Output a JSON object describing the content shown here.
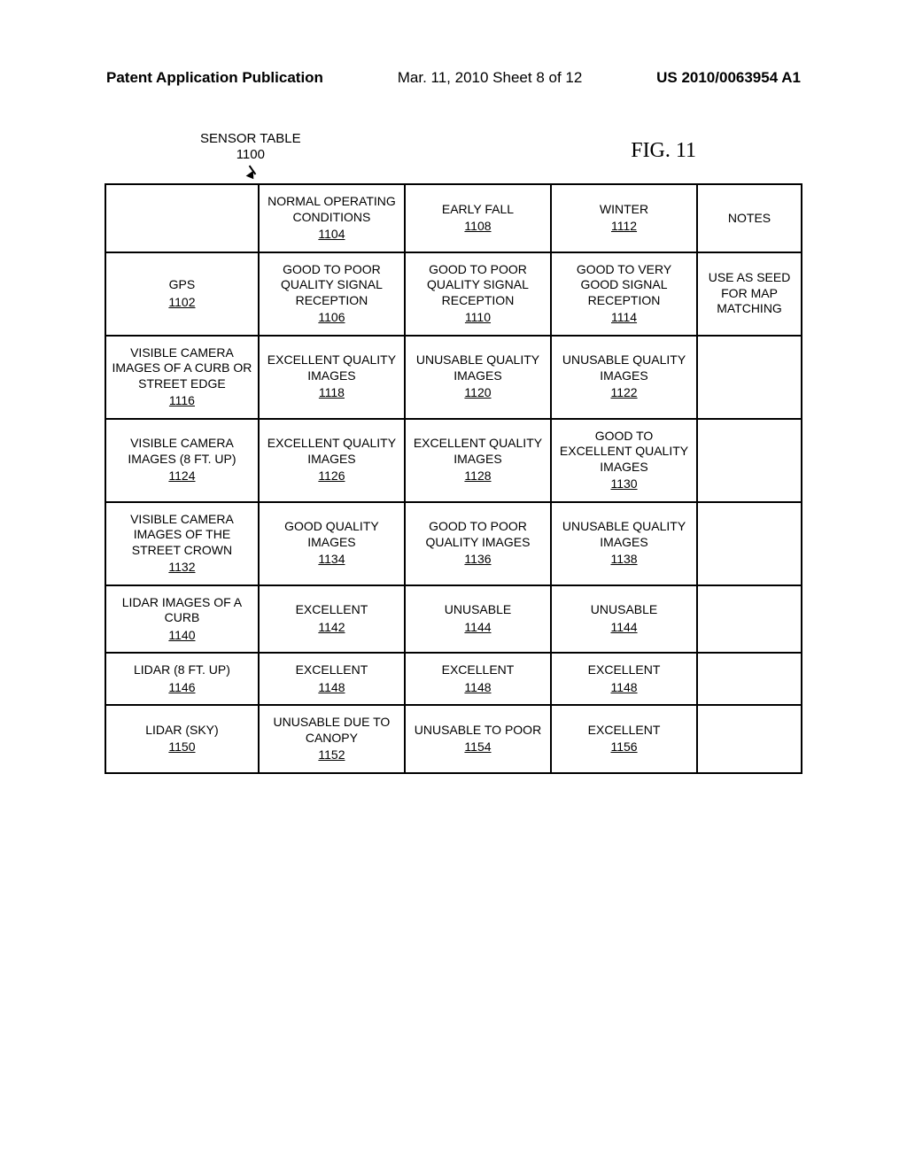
{
  "header": {
    "left": "Patent Application Publication",
    "center": "Mar. 11, 2010  Sheet 8 of 12",
    "right": "US 2010/0063954 A1"
  },
  "figure_label": "FIG. 11",
  "table_title": {
    "text": "SENSOR TABLE",
    "ref": "1100"
  },
  "columns": [
    {
      "text": "",
      "ref": ""
    },
    {
      "text": "NORMAL OPERATING CONDITIONS",
      "ref": "1104"
    },
    {
      "text": "EARLY FALL",
      "ref": "1108"
    },
    {
      "text": "WINTER",
      "ref": "1112"
    },
    {
      "text": "NOTES",
      "ref": ""
    }
  ],
  "rows": [
    {
      "label": {
        "text": "GPS",
        "ref": "1102"
      },
      "c1": {
        "text": "GOOD TO POOR QUALITY SIGNAL RECEPTION",
        "ref": "1106"
      },
      "c2": {
        "text": "GOOD TO POOR QUALITY SIGNAL RECEPTION",
        "ref": "1110"
      },
      "c3": {
        "text": "GOOD TO  VERY GOOD SIGNAL RECEPTION",
        "ref": "1114"
      },
      "notes": "USE AS SEED FOR MAP MATCHING"
    },
    {
      "label": {
        "text": "VISIBLE CAMERA IMAGES OF A CURB OR STREET EDGE",
        "ref": "1116"
      },
      "c1": {
        "text": "EXCELLENT QUALITY IMAGES",
        "ref": "1118"
      },
      "c2": {
        "text": "UNUSABLE QUALITY IMAGES",
        "ref": "1120"
      },
      "c3": {
        "text": "UNUSABLE QUALITY IMAGES",
        "ref": "1122"
      },
      "notes": ""
    },
    {
      "label": {
        "text": "VISIBLE CAMERA IMAGES (8 FT. UP)",
        "ref": "1124"
      },
      "c1": {
        "text": "EXCELLENT QUALITY IMAGES",
        "ref": "1126"
      },
      "c2": {
        "text": "EXCELLENT QUALITY IMAGES",
        "ref": "1128"
      },
      "c3": {
        "text": "GOOD TO EXCELLENT QUALITY IMAGES",
        "ref": "1130"
      },
      "notes": ""
    },
    {
      "label": {
        "text": "VISIBLE CAMERA IMAGES OF THE STREET CROWN",
        "ref": "1132"
      },
      "c1": {
        "text": "GOOD QUALITY IMAGES",
        "ref": "1134"
      },
      "c2": {
        "text": "GOOD TO POOR QUALITY IMAGES",
        "ref": "1136"
      },
      "c3": {
        "text": "UNUSABLE QUALITY IMAGES",
        "ref": "1138"
      },
      "notes": ""
    },
    {
      "label": {
        "text": "LIDAR IMAGES OF A CURB",
        "ref": "1140"
      },
      "c1": {
        "text": "EXCELLENT",
        "ref": "1142"
      },
      "c2": {
        "text": "UNUSABLE",
        "ref": "1144"
      },
      "c3": {
        "text": "UNUSABLE",
        "ref": "1144"
      },
      "notes": ""
    },
    {
      "label": {
        "text": "LIDAR (8 FT. UP)",
        "ref": "1146"
      },
      "c1": {
        "text": "EXCELLENT",
        "ref": "1148"
      },
      "c2": {
        "text": "EXCELLENT",
        "ref": "1148"
      },
      "c3": {
        "text": "EXCELLENT",
        "ref": "1148"
      },
      "notes": ""
    },
    {
      "label": {
        "text": "LIDAR (SKY)",
        "ref": "1150"
      },
      "c1": {
        "text": "UNUSABLE DUE TO CANOPY",
        "ref": "1152"
      },
      "c2": {
        "text": "UNUSABLE TO POOR",
        "ref": "1154"
      },
      "c3": {
        "text": "EXCELLENT",
        "ref": "1156"
      },
      "notes": ""
    }
  ]
}
